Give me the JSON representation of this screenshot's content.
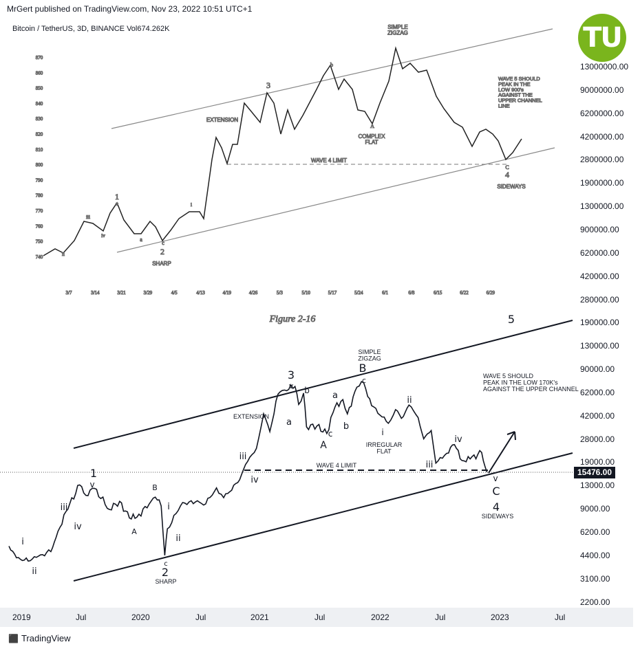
{
  "header": {
    "published": "MrGert published on TradingView.com, Nov 23, 2022 10:51 UTC+1",
    "symbol": "Bitcoin / TetherUS, 3D, BINANCE  Vol674.262K"
  },
  "logo": {
    "text": "TU",
    "color": "#7ab51d"
  },
  "price_axis": [
    "13000000.00",
    "9000000.00",
    "6200000.00",
    "4200000.00",
    "2800000.00",
    "1900000.00",
    "1300000.00",
    "900000.00",
    "620000.00",
    "420000.00",
    "280000.00",
    "190000.00",
    "130000.00",
    "90000.00",
    "62000.00",
    "42000.00",
    "28000.00",
    "19000.00",
    "13000.00",
    "9000.00",
    "6200.00",
    "4400.00",
    "3100.00",
    "2200.00"
  ],
  "last_price": "15476.00",
  "time_axis": [
    "2019",
    "Jul",
    "2020",
    "Jul",
    "2021",
    "Jul",
    "2022",
    "Jul",
    "2023",
    "Jul"
  ],
  "footer": {
    "brand": "TradingView"
  },
  "scan": {
    "caption": "Figure 2-16",
    "yticks": [
      "870",
      "860",
      "850",
      "840",
      "830",
      "820",
      "810",
      "800",
      "790",
      "780",
      "770",
      "760",
      "750",
      "740"
    ],
    "xticks": [
      "3/7",
      "3/14",
      "3/21",
      "3/29",
      "4/5",
      "4/13",
      "4/19",
      "4/26",
      "5/3",
      "5/10",
      "5/17",
      "5/24",
      "6/1",
      "6/8",
      "6/15",
      "6/22",
      "6/29"
    ],
    "labels": {
      "simple_zigzag": "SIMPLE\nZIGZAG",
      "extension": "EXTENSION",
      "complex_flat": "COMPLEX\nFLAT",
      "wave4_limit": "WAVE 4 LIMIT",
      "sideways": "SIDEWAYS",
      "sharp": "SHARP",
      "note": "WAVE 5 SHOULD\nPEAK IN THE\nLOW 900's\nAGAINST THE\nUPPER CHANNEL\nLINE"
    },
    "waves": [
      "1",
      "2",
      "3",
      "4",
      "a",
      "b",
      "c",
      "A",
      "B",
      "C",
      "i",
      "ii",
      "iii",
      "iv",
      "v"
    ]
  },
  "chart_data": {
    "type": "line",
    "title": "Bitcoin / TetherUS, 3D, BINANCE",
    "scale": "log",
    "ylim": [
      1800,
      230000
    ],
    "xlim": [
      "2018-11-22",
      "2023-10-01"
    ],
    "series": [
      {
        "x": [
          "2018-11-22",
          "2018-12-15",
          "2019-01-20",
          "2019-02-20",
          "2019-03-30",
          "2019-04-15",
          "2019-05-15",
          "2019-06-26",
          "2019-07-15",
          "2019-08-10",
          "2019-09-25",
          "2019-10-26",
          "2019-11-25",
          "2019-12-18",
          "2020-02-12",
          "2020-03-01",
          "2020-03-12",
          "2020-03-20",
          "2020-04-29",
          "2020-06-01",
          "2020-07-15",
          "2020-08-17",
          "2020-09-08",
          "2020-10-21",
          "2020-11-20",
          "2020-12-17",
          "2021-01-08",
          "2021-01-27",
          "2021-02-21",
          "2021-03-13",
          "2021-04-14",
          "2021-04-25",
          "2021-05-10",
          "2021-05-19",
          "2021-06-20",
          "2021-07-20",
          "2021-08-14",
          "2021-09-07",
          "2021-09-21",
          "2021-10-20",
          "2021-11-10",
          "2021-12-04",
          "2022-01-24",
          "2022-02-15",
          "2022-03-05",
          "2022-03-28",
          "2022-04-25",
          "2022-05-12",
          "2022-06-04",
          "2022-06-18",
          "2022-07-15",
          "2022-08-14",
          "2022-09-06",
          "2022-10-01",
          "2022-11-05",
          "2022-11-21"
        ],
        "values": [
          4500,
          3700,
          3500,
          3800,
          4100,
          5200,
          8000,
          12500,
          10500,
          11800,
          8300,
          9500,
          7200,
          7300,
          10200,
          8800,
          3850,
          6000,
          8800,
          9600,
          9100,
          11900,
          10100,
          13000,
          18500,
          23000,
          41000,
          30500,
          57000,
          61000,
          64800,
          48000,
          58000,
          33000,
          33500,
          29500,
          46000,
          52000,
          41000,
          64000,
          68800,
          47000,
          35000,
          44000,
          38000,
          47500,
          38500,
          27000,
          31000,
          18000,
          20500,
          24500,
          18800,
          19300,
          21500,
          15476
        ]
      }
    ]
  },
  "chart_annotations": {
    "simple_zigzag": "SIMPLE\nZIGZAG",
    "extension": "EXTENSION",
    "irregular_flat": "IRREGULAR\nFLAT",
    "wave4_limit": "WAVE 4 LIMIT",
    "sideways": "SIDEWAYS",
    "sharp": "SHARP",
    "note": "WAVE 5 SHOULD\nPEAK IN THE LOW 170K's\nAGAINST THE UPPER CHANNEL",
    "waves": {
      "w1": "1",
      "w2": "2",
      "w3": "3",
      "w4": "4",
      "w5": "5",
      "A1": "A",
      "B1": "B",
      "c1": "c",
      "A2": "A",
      "B2": "B",
      "C2": "C",
      "a2": "a",
      "b2": "b",
      "c2": "c",
      "C2s": "c",
      "a1": "a",
      "b1": "b",
      "i": "i",
      "ii": "ii",
      "iii": "iii",
      "iv": "iv",
      "v": "v"
    }
  }
}
